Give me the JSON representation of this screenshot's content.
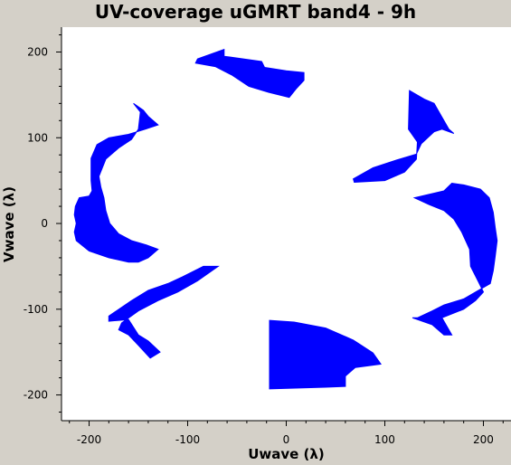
{
  "colors": {
    "background": "#d4d0c8",
    "plot_area": "#ffffff",
    "data": "#0000ff",
    "axis": "#000000"
  },
  "chart_data": {
    "type": "scatter",
    "title": "UV-coverage uGMRT band4 - 9h",
    "xlabel": "Uwave (λ)",
    "ylabel": "Vwave (λ)",
    "xlim": [
      -228,
      228
    ],
    "ylim": [
      -230,
      229
    ],
    "xticks": [
      -200,
      -100,
      0,
      100,
      200
    ],
    "yticks": [
      -200,
      -100,
      0,
      100,
      200
    ],
    "grid": false,
    "series": [
      {
        "color": "#0000ff",
        "regions": [
          {
            "name": "top",
            "points": [
              [
                -90,
                192
              ],
              [
                -63,
                203
              ],
              [
                -63,
                195
              ],
              [
                -25,
                189
              ],
              [
                -22,
                182
              ],
              [
                0,
                178
              ],
              [
                18,
                176
              ],
              [
                18,
                167
              ],
              [
                10,
                157
              ],
              [
                3,
                147
              ],
              [
                -18,
                153
              ],
              [
                -38,
                160
              ],
              [
                -55,
                173
              ],
              [
                -72,
                183
              ],
              [
                -92,
                187
              ]
            ]
          },
          {
            "name": "bottom",
            "points": [
              [
                -17,
                -113
              ],
              [
                8,
                -115
              ],
              [
                40,
                -122
              ],
              [
                68,
                -136
              ],
              [
                88,
                -151
              ],
              [
                96,
                -164
              ],
              [
                70,
                -168
              ],
              [
                64,
                -174
              ],
              [
                60,
                -178
              ],
              [
                60,
                -190
              ],
              [
                40,
                -191
              ],
              [
                -17,
                -193
              ]
            ]
          },
          {
            "name": "right-small",
            "points": [
              [
                125,
                155
              ],
              [
                140,
                145
              ],
              [
                150,
                140
              ],
              [
                155,
                130
              ],
              [
                165,
                110
              ],
              [
                170,
                105
              ],
              [
                158,
                110
              ],
              [
                150,
                107
              ],
              [
                137,
                93
              ],
              [
                132,
                81
              ],
              [
                112,
                74
              ],
              [
                88,
                65
              ],
              [
                68,
                52
              ],
              [
                69,
                48
              ],
              [
                100,
                50
              ],
              [
                120,
                60
              ],
              [
                132,
                75
              ],
              [
                133,
                95
              ],
              [
                124,
                110
              ]
            ]
          },
          {
            "name": "left-small",
            "points": [
              [
                -69,
                -50
              ],
              [
                -84,
                -50
              ],
              [
                -105,
                -62
              ],
              [
                -120,
                -70
              ],
              [
                -140,
                -78
              ],
              [
                -157,
                -90
              ],
              [
                -180,
                -108
              ],
              [
                -180,
                -114
              ],
              [
                -160,
                -112
              ],
              [
                -150,
                -130
              ],
              [
                -140,
                -137
              ],
              [
                -128,
                -150
              ],
              [
                -138,
                -157
              ],
              [
                -150,
                -142
              ],
              [
                -160,
                -130
              ],
              [
                -170,
                -124
              ],
              [
                -167,
                -116
              ],
              [
                -150,
                -102
              ],
              [
                -130,
                -90
              ],
              [
                -110,
                -80
              ],
              [
                -90,
                -67
              ]
            ]
          },
          {
            "name": "left-large",
            "points": [
              [
                -155,
                140
              ],
              [
                -145,
                132
              ],
              [
                -140,
                125
              ],
              [
                -130,
                115
              ],
              [
                -143,
                110
              ],
              [
                -160,
                104
              ],
              [
                -180,
                100
              ],
              [
                -192,
                92
              ],
              [
                -198,
                76
              ],
              [
                -198,
                62
              ],
              [
                -198,
                50
              ],
              [
                -197,
                38
              ],
              [
                -200,
                32
              ],
              [
                -210,
                30
              ],
              [
                -214,
                20
              ],
              [
                -215,
                10
              ],
              [
                -213,
                0
              ],
              [
                -215,
                -10
              ],
              [
                -213,
                -20
              ],
              [
                -200,
                -32
              ],
              [
                -180,
                -40
              ],
              [
                -160,
                -45
              ],
              [
                -150,
                -45
              ],
              [
                -140,
                -40
              ],
              [
                -130,
                -30
              ],
              [
                -142,
                -25
              ],
              [
                -157,
                -20
              ],
              [
                -170,
                -12
              ],
              [
                -179,
                0
              ],
              [
                -183,
                15
              ],
              [
                -185,
                30
              ],
              [
                -188,
                42
              ],
              [
                -190,
                55
              ],
              [
                -183,
                75
              ],
              [
                -170,
                88
              ],
              [
                -157,
                98
              ],
              [
                -150,
                110
              ],
              [
                -148,
                130
              ]
            ]
          },
          {
            "name": "right-large",
            "points": [
              [
                130,
                30
              ],
              [
                160,
                38
              ],
              [
                168,
                47
              ],
              [
                180,
                45
              ],
              [
                197,
                40
              ],
              [
                206,
                30
              ],
              [
                210,
                13
              ],
              [
                212,
                -5
              ],
              [
                214,
                -20
              ],
              [
                212,
                -38
              ],
              [
                210,
                -55
              ],
              [
                207,
                -70
              ],
              [
                192,
                -80
              ],
              [
                180,
                -88
              ],
              [
                160,
                -95
              ],
              [
                148,
                -102
              ],
              [
                133,
                -110
              ],
              [
                128,
                -110
              ],
              [
                148,
                -118
              ],
              [
                160,
                -130
              ],
              [
                168,
                -130
              ],
              [
                158,
                -110
              ],
              [
                180,
                -100
              ],
              [
                192,
                -90
              ],
              [
                200,
                -80
              ],
              [
                195,
                -68
              ],
              [
                187,
                -50
              ],
              [
                186,
                -30
              ],
              [
                178,
                -10
              ],
              [
                170,
                5
              ],
              [
                160,
                15
              ],
              [
                145,
                22
              ]
            ]
          }
        ]
      }
    ]
  }
}
